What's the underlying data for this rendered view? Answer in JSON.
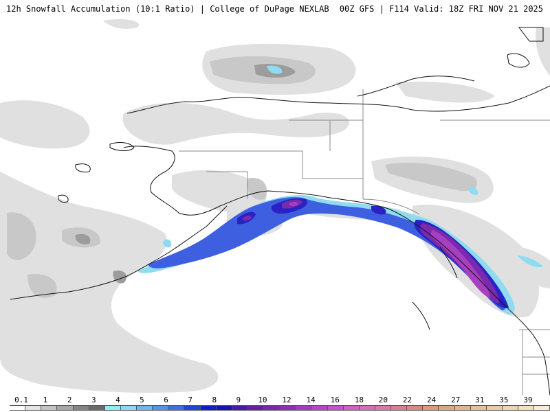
{
  "header": {
    "title_left": "12h Snowfall Accumulation (10:1 Ratio) | College of DuPage NEXLAB",
    "title_right": "00Z GFS | F114 Valid: 18Z FRI NOV 21 2025"
  },
  "legend": {
    "labels": [
      "0.1",
      "1",
      "2",
      "3",
      "4",
      "5",
      "6",
      "7",
      "8",
      "9",
      "10",
      "12",
      "14",
      "16",
      "18",
      "20",
      "22",
      "24",
      "27",
      "31",
      "35",
      "39"
    ],
    "colors": [
      "#ffffff",
      "#e4e4e4",
      "#c4c4c4",
      "#a6a6a6",
      "#848484",
      "#6a6a6a",
      "#90eef0",
      "#8fd7f3",
      "#73b6ee",
      "#5693e6",
      "#3d6fe0",
      "#2244d8",
      "#0f1fd0",
      "#1a10b8",
      "#4b1aa8",
      "#6a1ea6",
      "#7a26ad",
      "#8f2fb6",
      "#a33ac0",
      "#b645c8",
      "#c552cb",
      "#cf60c8",
      "#d56fbb",
      "#d87aa8",
      "#d97f94",
      "#d88a82",
      "#d99a7e",
      "#dba886",
      "#dfb590",
      "#e4c19a",
      "#e9cca6",
      "#eed6b2",
      "#f3e0c0",
      "#f8ecd8"
    ]
  },
  "map": {
    "colors": {
      "water": "#ffffff",
      "land": "#ffffff",
      "coast": "#111111",
      "border": "#8a8a8a",
      "shade_light": "#e0e0e0",
      "shade_mid": "#c8c8c8",
      "shade_dark": "#9c9c9c",
      "snow_cyan": "#8fdcf0",
      "snow_blue": "#3d5fe0",
      "snow_indigo": "#2a22c4",
      "snow_violet": "#7a2aac",
      "snow_purple": "#a63fc0"
    }
  }
}
